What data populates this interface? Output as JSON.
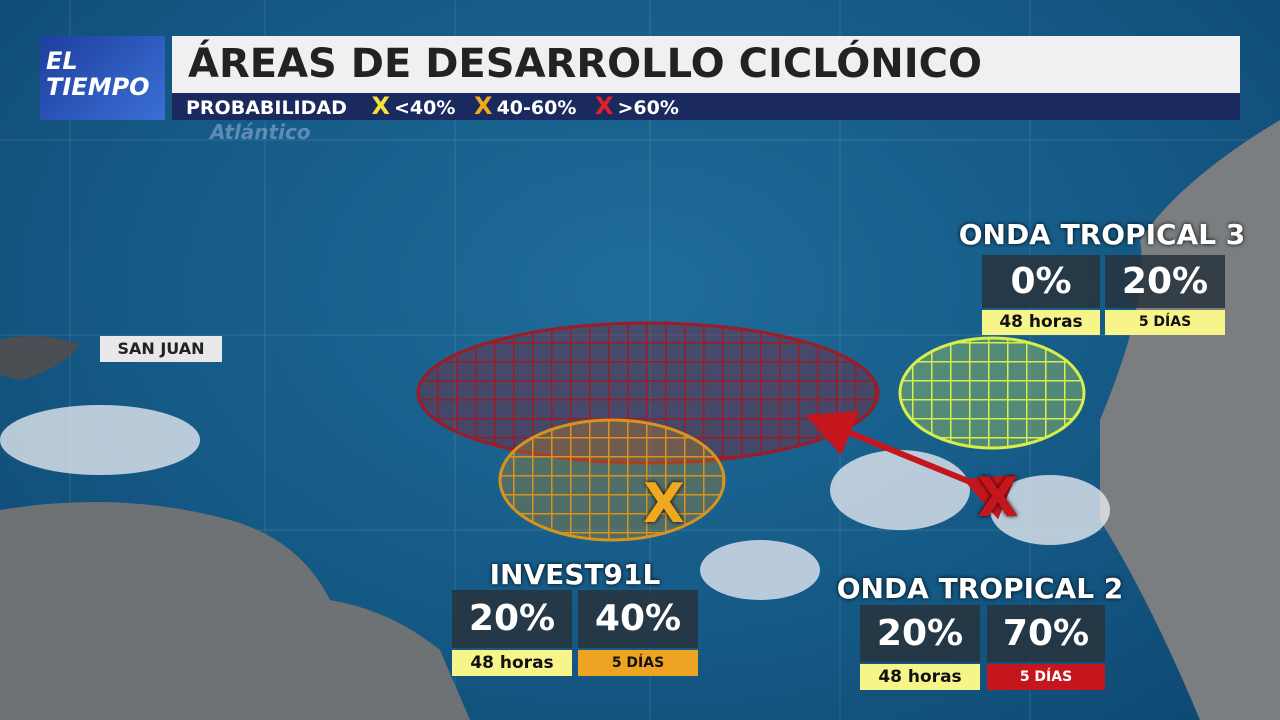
{
  "header": {
    "logo": [
      "EL",
      "TIEMPO"
    ],
    "title": "ÁREAS DE DESARROLLO CICLÓNICO",
    "legend": {
      "label": "PROBABILIDAD",
      "items": [
        {
          "mark": "X",
          "text": "<40%"
        },
        {
          "mark": "X",
          "text": "40-60%"
        },
        {
          "mark": "X",
          "text": ">60%"
        }
      ]
    }
  },
  "map": {
    "watermark": "Atlántico",
    "place": "SAN JUAN",
    "markers": [
      "X",
      "X"
    ]
  },
  "systems": [
    {
      "name": "ONDA TROPICAL 3",
      "p48": "0%",
      "p48_label": "48 horas",
      "p5": "20%",
      "p5_label": "5 DÍAS"
    },
    {
      "name": "INVEST91L",
      "p48": "20%",
      "p48_label": "48 horas",
      "p5": "40%",
      "p5_label": "5 DÍAS"
    },
    {
      "name": "ONDA TROPICAL 2",
      "p48": "20%",
      "p48_label": "48 horas",
      "p5": "70%",
      "p5_label": "5 DÍAS"
    }
  ]
}
